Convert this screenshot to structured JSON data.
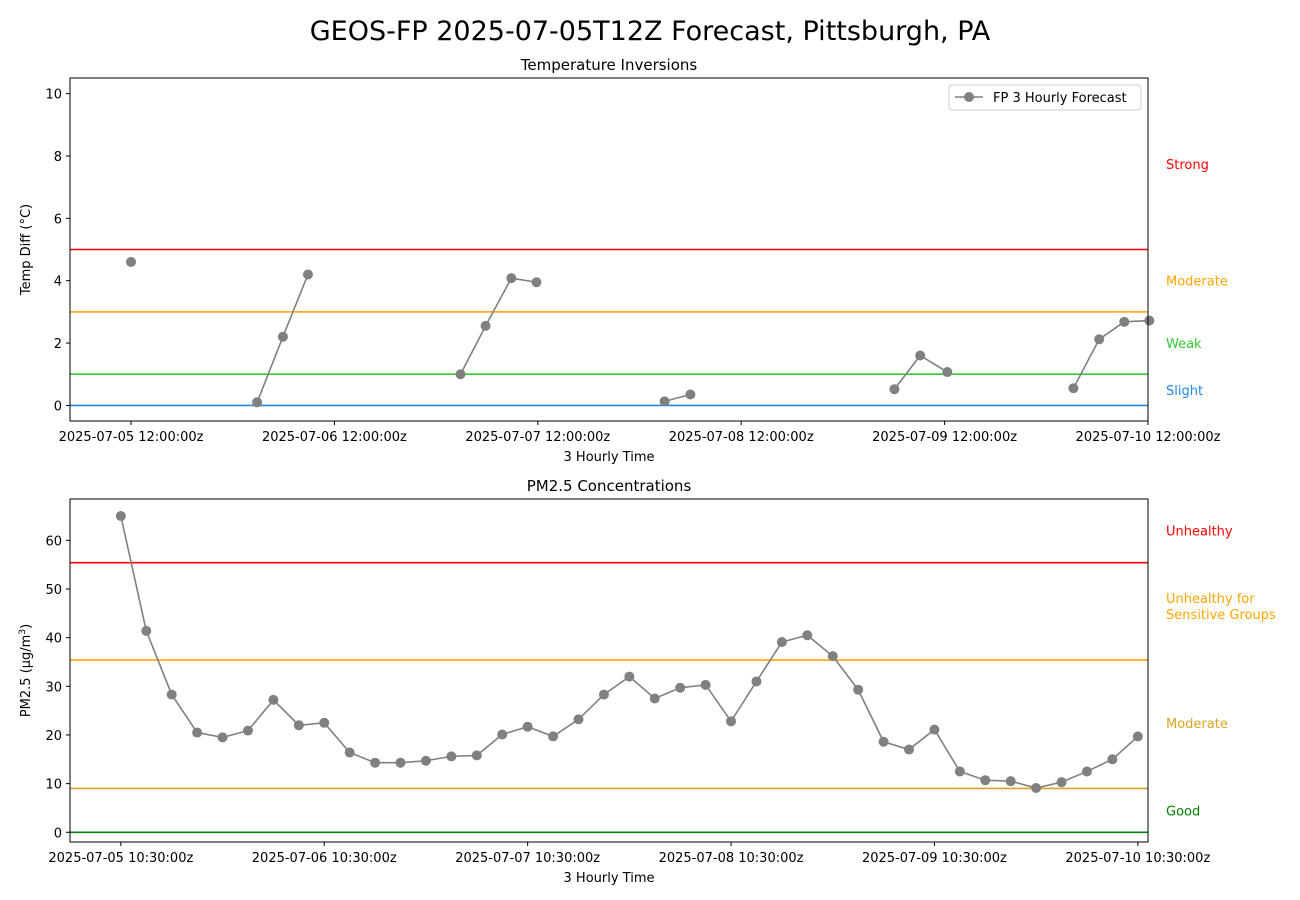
{
  "title": "GEOS-FP 2025-07-05T12Z Forecast, Pittsburgh, PA",
  "series_color": "#808080",
  "chart_data": [
    {
      "type": "line",
      "title": "Temperature Inversions",
      "xlabel": "3 Hourly Time",
      "ylabel": "Temp Diff (°C)",
      "ylim": [
        -0.5,
        10.5
      ],
      "yticks": [
        0,
        2,
        4,
        6,
        8,
        10
      ],
      "xlim_hours": [
        -9,
        150
      ],
      "x_origin_label": "2025-07-05 12:00:00z",
      "xticks": [
        {
          "h": 0,
          "label": "2025-07-05 12:00:00z"
        },
        {
          "h": 30,
          "label": "2025-07-06 12:00:00z"
        },
        {
          "h": 60,
          "label": "2025-07-07 12:00:00z"
        },
        {
          "h": 90,
          "label": "2025-07-08 12:00:00z"
        },
        {
          "h": 120,
          "label": "2025-07-09 12:00:00z"
        },
        {
          "h": 150,
          "label": "2025-07-10 12:00:00z"
        }
      ],
      "legend": {
        "label": "FP 3 Hourly Forecast",
        "position": "upper right"
      },
      "grid": false,
      "series": [
        {
          "name": "FP 3 Hourly Forecast",
          "segments": [
            [
              {
                "h": 0,
                "y": 4.6
              }
            ],
            [
              {
                "h": 18.6,
                "y": 0.1
              },
              {
                "h": 22.4,
                "y": 2.2
              },
              {
                "h": 26.1,
                "y": 4.2
              }
            ],
            [
              {
                "h": 48.6,
                "y": 1.0
              },
              {
                "h": 52.3,
                "y": 2.55
              },
              {
                "h": 56.1,
                "y": 4.08
              },
              {
                "h": 59.8,
                "y": 3.95
              }
            ],
            [
              {
                "h": 78.7,
                "y": 0.13
              },
              {
                "h": 82.5,
                "y": 0.35
              }
            ],
            [
              {
                "h": 112.6,
                "y": 0.52
              },
              {
                "h": 116.4,
                "y": 1.6
              },
              {
                "h": 120.4,
                "y": 1.07
              }
            ],
            [
              {
                "h": 139.0,
                "y": 0.55
              },
              {
                "h": 142.8,
                "y": 2.12
              },
              {
                "h": 146.5,
                "y": 2.68
              },
              {
                "h": 150.2,
                "y": 2.72
              }
            ]
          ]
        }
      ],
      "thresholds": [
        {
          "value": 0,
          "color": "#1e88e5",
          "label": "Slight",
          "label_y": 0.5
        },
        {
          "value": 1,
          "color": "#33cc33",
          "label": "Weak",
          "label_y": 2.0
        },
        {
          "value": 3,
          "color": "#ffa500",
          "label": "Moderate",
          "label_y": 4.0
        },
        {
          "value": 5,
          "color": "#ff0000",
          "label": "Strong",
          "label_y": 7.75
        }
      ]
    },
    {
      "type": "line",
      "title": "PM2.5 Concentrations",
      "xlabel": "3 Hourly Time",
      "ylabel": "PM2.5 (μg/m3)",
      "ylim": [
        -2,
        68.5
      ],
      "yticks": [
        0,
        10,
        20,
        30,
        40,
        50,
        60
      ],
      "xlim_hours": [
        -7.5,
        151.5
      ],
      "x_origin_label": "2025-07-05 10:30:00z",
      "xticks": [
        {
          "h": 0,
          "label": "2025-07-05 10:30:00z"
        },
        {
          "h": 30,
          "label": "2025-07-06 10:30:00z"
        },
        {
          "h": 60,
          "label": "2025-07-07 10:30:00z"
        },
        {
          "h": 90,
          "label": "2025-07-08 10:30:00z"
        },
        {
          "h": 120,
          "label": "2025-07-09 10:30:00z"
        },
        {
          "h": 150,
          "label": "2025-07-10 10:30:00z"
        }
      ],
      "grid": false,
      "step_hours": 3.75,
      "values": [
        65.0,
        41.4,
        28.3,
        20.5,
        19.5,
        20.9,
        27.2,
        22.0,
        22.5,
        16.4,
        14.3,
        14.3,
        14.7,
        15.6,
        15.8,
        20.1,
        21.7,
        19.7,
        23.2,
        28.3,
        32.0,
        27.5,
        29.7,
        30.3,
        22.8,
        31.0,
        39.1,
        40.5,
        36.2,
        29.3,
        18.6,
        17.0,
        21.1,
        12.5,
        10.7,
        10.5,
        9.1,
        10.3,
        12.5,
        15.0,
        19.7
      ],
      "thresholds": [
        {
          "value": 0,
          "color": "#008000",
          "label": "Good",
          "label_y": 4.5
        },
        {
          "value": 9,
          "color": "#daa520",
          "label": "Moderate",
          "label_y": 22.5
        },
        {
          "value": 35.4,
          "color": "#ffa500",
          "label": "Unhealthy for Sensitive Groups",
          "label_y": 46.5
        },
        {
          "value": 55.4,
          "color": "#ff0000",
          "label": "Unhealthy",
          "label_y": 62.0
        }
      ],
      "threshold_label_lines": {
        "Unhealthy for Sensitive Groups": [
          "Unhealthy for",
          "Sensitive Groups"
        ]
      }
    }
  ]
}
